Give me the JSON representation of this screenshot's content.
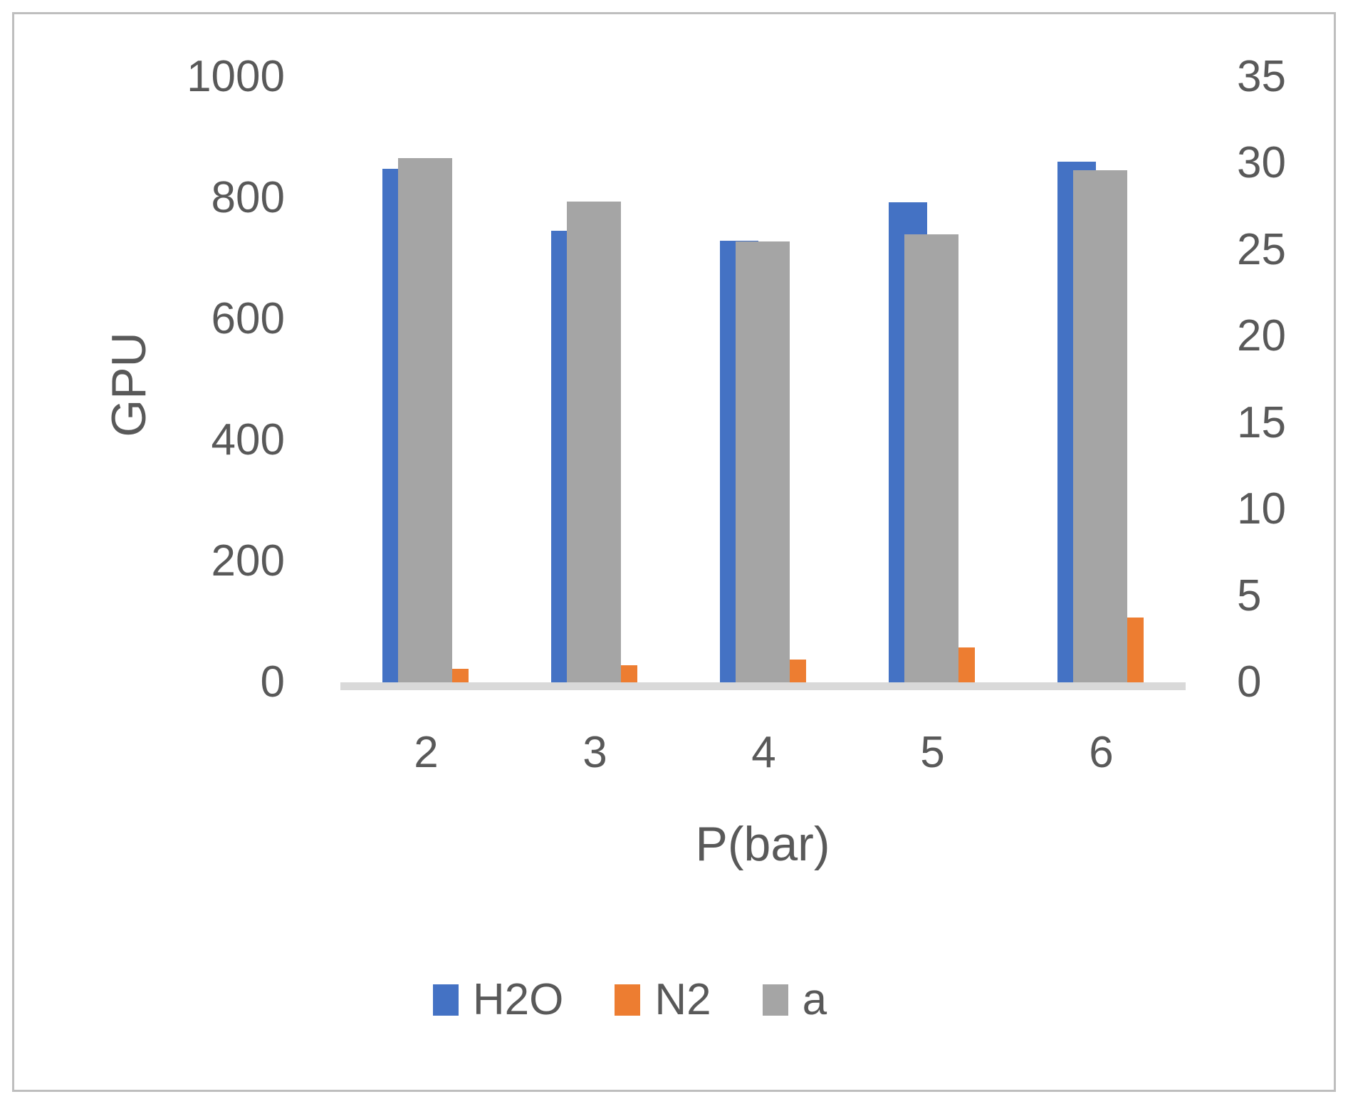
{
  "chart_data": {
    "type": "bar",
    "title": "",
    "xlabel": "P(bar)",
    "ylabel_left": "GPU",
    "ylabel_right": "",
    "categories": [
      "2",
      "3",
      "4",
      "5",
      "6"
    ],
    "series": [
      {
        "name": "H2O",
        "axis": "left",
        "color": "#4472C4",
        "values": [
          848,
          746,
          730,
          793,
          860
        ]
      },
      {
        "name": "N2",
        "axis": "right",
        "color": "#ED7D31",
        "values": [
          0.8,
          1.0,
          1.3,
          2.0,
          3.75
        ]
      },
      {
        "name": "a",
        "axis": "right",
        "color": "#A5A5A5",
        "values": [
          30.3,
          27.8,
          25.5,
          25.9,
          29.6
        ]
      }
    ],
    "left_axis": {
      "min": 0,
      "max": 1000,
      "step": 200,
      "ticks": [
        "0",
        "200",
        "400",
        "600",
        "800",
        "1000"
      ]
    },
    "right_axis": {
      "min": 0,
      "max": 35,
      "step": 5,
      "ticks": [
        "0",
        "5",
        "10",
        "15",
        "20",
        "25",
        "30",
        "35"
      ]
    },
    "legend": [
      "H2O",
      "N2",
      "a"
    ],
    "legend_position": "bottom",
    "grid": false
  },
  "colors": {
    "text": "#595959",
    "baseline": "#D9D9D9",
    "border": "#BEBEBE",
    "background": "#FFFFFF"
  }
}
